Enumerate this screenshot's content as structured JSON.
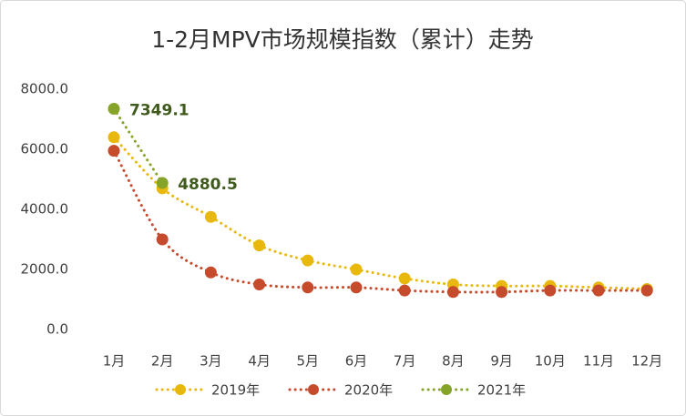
{
  "chart_data": {
    "type": "line",
    "title": "1-2月MPV市场规模指数（累计）走势",
    "categories": [
      "1月",
      "2月",
      "3月",
      "4月",
      "5月",
      "6月",
      "7月",
      "8月",
      "9月",
      "10月",
      "11月",
      "12月"
    ],
    "series": [
      {
        "name": "2019年",
        "color": "#e8b90c",
        "values": [
          6400,
          4700,
          3750,
          2800,
          2300,
          2000,
          1700,
          1500,
          1450,
          1450,
          1400,
          1350
        ]
      },
      {
        "name": "2020年",
        "color": "#c64a2c",
        "values": [
          5950,
          3000,
          1900,
          1500,
          1400,
          1400,
          1300,
          1250,
          1250,
          1300,
          1300,
          1300
        ]
      },
      {
        "name": "2021年",
        "color": "#86a32a",
        "values": [
          7349.1,
          4880.5,
          null,
          null,
          null,
          null,
          null,
          null,
          null,
          null,
          null,
          null
        ],
        "data_labels": true
      }
    ],
    "ylim": [
      0,
      8000
    ],
    "yticks": [
      {
        "value": 0,
        "label": "0.0"
      },
      {
        "value": 2000,
        "label": "2000.0"
      },
      {
        "value": 4000,
        "label": "4000.0"
      },
      {
        "value": 6000,
        "label": "6000.0"
      },
      {
        "value": 8000,
        "label": "8000.0"
      }
    ],
    "grid": false,
    "legend": "bottom"
  }
}
